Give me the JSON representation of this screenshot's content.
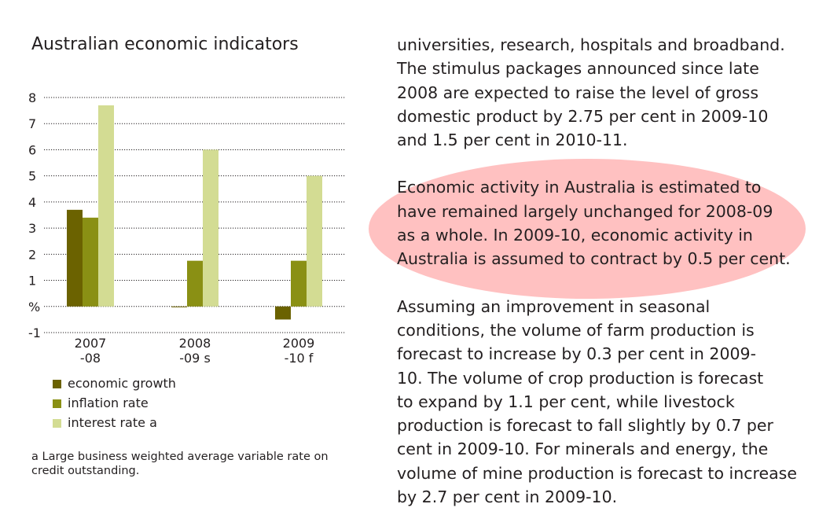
{
  "chart_data": {
    "type": "bar",
    "title": "Australian economic indicators",
    "categories": [
      "2007\n-08",
      "2008\n-09 s",
      "2009\n-10 f"
    ],
    "series": [
      {
        "name": "economic growth",
        "values": [
          3.7,
          0,
          -0.5
        ],
        "color": "#6b6200"
      },
      {
        "name": "inflation rate",
        "values": [
          3.4,
          1.75,
          1.75
        ],
        "color": "#8a9014"
      },
      {
        "name": "interest rate",
        "values": [
          7.7,
          6.0,
          5.0
        ],
        "color": "#d3dc93"
      }
    ],
    "yticks": [
      "8",
      "7",
      "6",
      "5",
      "4",
      "3",
      "2",
      "1",
      "%",
      "-1"
    ],
    "ylim": [
      -1,
      8
    ],
    "ylabel": "%",
    "grid": true,
    "legend_position": "bottom-left"
  },
  "legend": {
    "items": [
      {
        "label": "economic growth",
        "suffix": ""
      },
      {
        "label": "inflation rate",
        "suffix": ""
      },
      {
        "label": "interest rate ",
        "suffix": "a"
      }
    ]
  },
  "footnote": {
    "marker": "a",
    "text": " Large business weighted average variable rate on credit outstanding."
  },
  "body_text": {
    "paragraph1": "universities, research, hospitals and broadband.\nThe stimulus packages announced since late\n2008 are expected to raise the level of gross\ndomestic product by 2.75 per cent in 2009-10\nand 1.5 per cent in 2010-11.",
    "paragraph2": "Economic activity in Australia is estimated to\nhave remained largely unchanged for 2008-09\nas a whole. In 2009-10, economic activity in\nAustralia is assumed to contract by 0.5 per cent.",
    "paragraph3": "Assuming an improvement in seasonal\nconditions, the volume of farm production is\nforecast to increase by 0.3 per cent in 2009-\n10. The volume of crop production is forecast\nto expand by 1.1 per cent, while livestock\nproduction is forecast to fall slightly by 0.7 per\ncent in 2009-10. For minerals and energy, the\nvolume of mine production is forecast to increase\nby 2.7 per cent in 2009-10.",
    "highlight_color": "#ffc1c1"
  }
}
